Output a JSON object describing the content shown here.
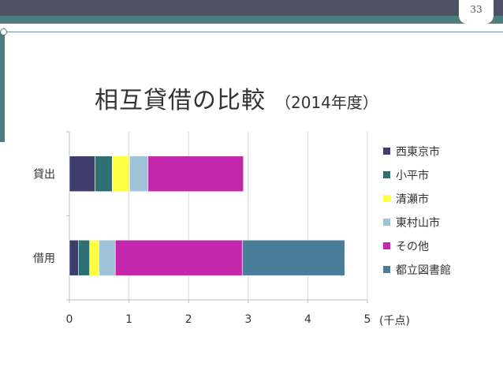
{
  "slide": {
    "page_number": "33",
    "title": "相互貸借の比較",
    "subtitle": "（2014年度）"
  },
  "chart_data": {
    "type": "bar",
    "orientation": "horizontal",
    "stacked": true,
    "categories": [
      "貸出",
      "借用"
    ],
    "series": [
      {
        "name": "西東京市",
        "values": [
          0.43,
          0.15
        ],
        "color": "#3e3d6b"
      },
      {
        "name": "小平市",
        "values": [
          0.29,
          0.19
        ],
        "color": "#2e6f74"
      },
      {
        "name": "清瀬市",
        "values": [
          0.29,
          0.16
        ],
        "color": "#ffff44"
      },
      {
        "name": "東村山市",
        "values": [
          0.31,
          0.27
        ],
        "color": "#9ec2d7"
      },
      {
        "name": "その他",
        "values": [
          1.6,
          2.13
        ],
        "color": "#c327ab"
      },
      {
        "name": "都立図書館",
        "values": [
          0.0,
          1.72
        ],
        "color": "#4a7d9a"
      }
    ],
    "xlim": [
      0,
      5
    ],
    "xticks": [
      "0",
      "1",
      "2",
      "3",
      "4",
      "5"
    ],
    "unit_label": "(千点)",
    "grid": true,
    "legend_position": "right"
  }
}
